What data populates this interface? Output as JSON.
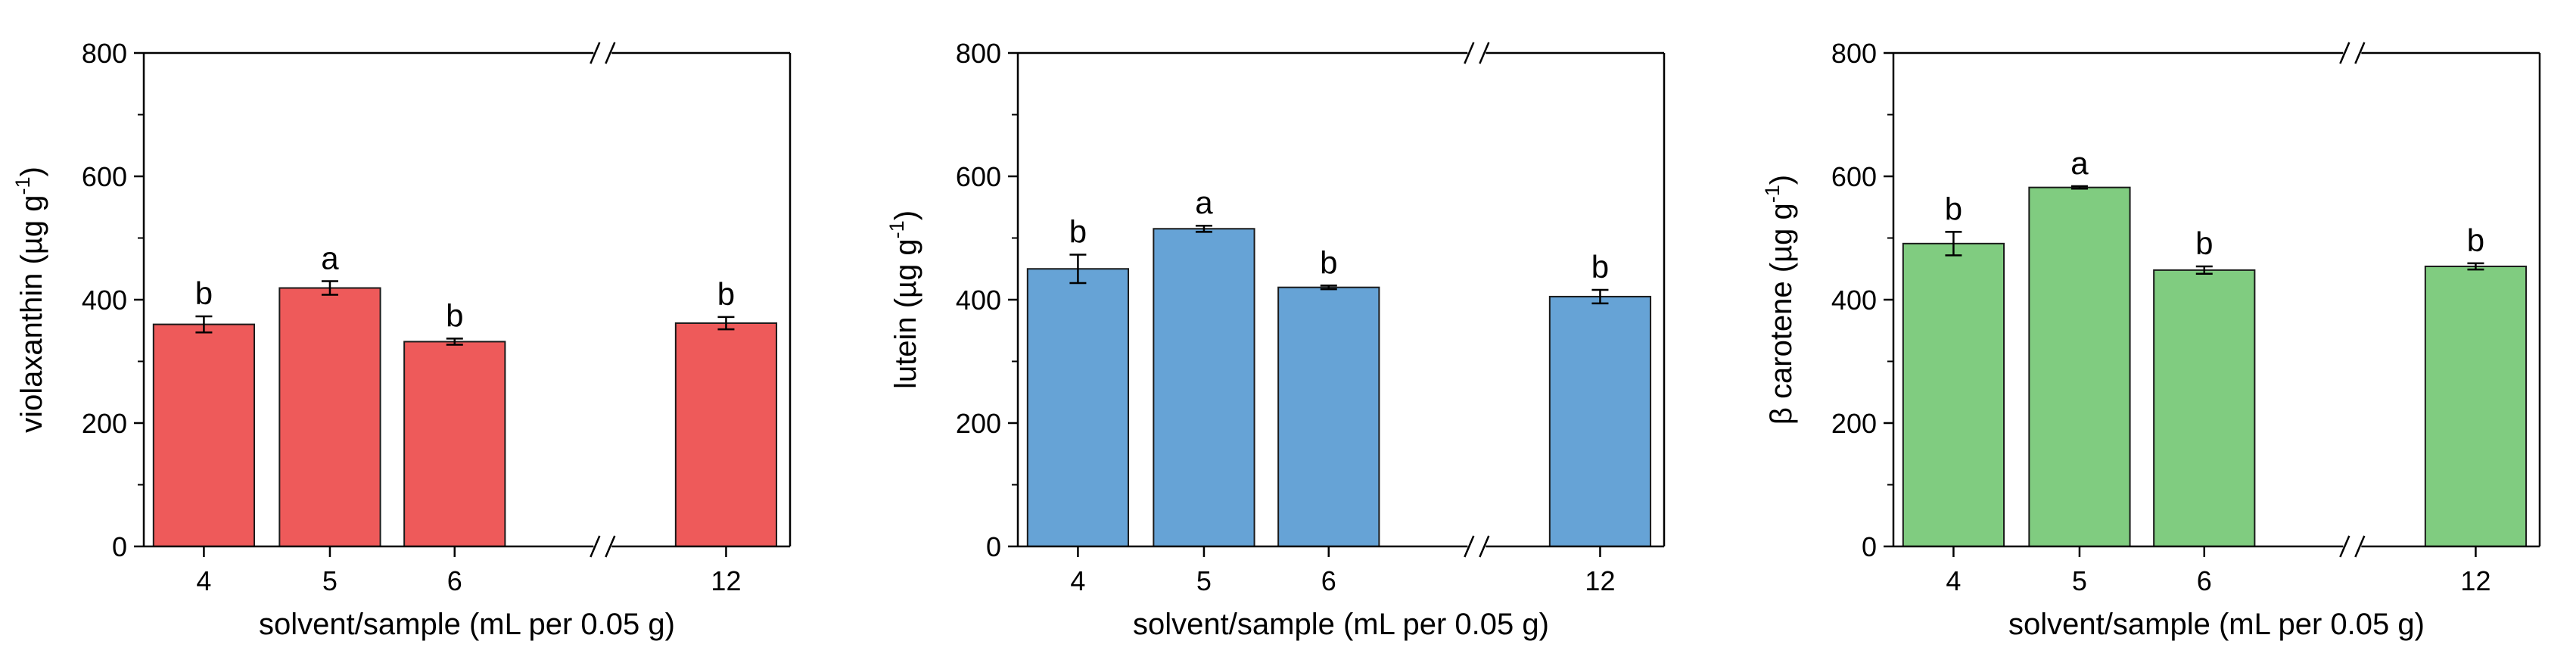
{
  "chart_data": [
    {
      "type": "bar",
      "categories": [
        "4",
        "5",
        "6",
        "12"
      ],
      "values": [
        360,
        419,
        332,
        362
      ],
      "errors": [
        13,
        11,
        5,
        10
      ],
      "significance": [
        "b",
        "a",
        "b",
        "b"
      ],
      "color": "#ee5a5a",
      "xlabel": "solvent/sample (mL per 0.05 g)",
      "ylabel": "violaxanthin (µg g-1)",
      "ylabel_main": "violaxanthin (µg g",
      "ylabel_sup": "-1",
      "ylabel_close": ")",
      "ylim": [
        0,
        800
      ],
      "yticks": [
        "0",
        "200",
        "400",
        "600",
        "800"
      ],
      "axis_break": "//",
      "grid": false
    },
    {
      "type": "bar",
      "categories": [
        "4",
        "5",
        "6",
        "12"
      ],
      "values": [
        450,
        515,
        420,
        405
      ],
      "errors": [
        23,
        5,
        3,
        11
      ],
      "significance": [
        "b",
        "a",
        "b",
        "b"
      ],
      "color": "#66a3d6",
      "xlabel": "solvent/sample (mL per 0.05 g)",
      "ylabel": "lutein (µg g-1)",
      "ylabel_main": "lutein (µg g",
      "ylabel_sup": "-1",
      "ylabel_close": ")",
      "ylim": [
        0,
        800
      ],
      "yticks": [
        "0",
        "200",
        "400",
        "600",
        "800"
      ],
      "axis_break": "//",
      "grid": false
    },
    {
      "type": "bar",
      "categories": [
        "4",
        "5",
        "6",
        "12"
      ],
      "values": [
        491,
        582,
        448,
        454
      ],
      "errors": [
        19,
        2,
        6,
        5
      ],
      "significance": [
        "b",
        "a",
        "b",
        "b"
      ],
      "color": "#80cc80",
      "xlabel": "solvent/sample (mL per 0.05 g)",
      "ylabel": "β carotene (µg g-1)",
      "ylabel_main": "β carotene (µg g",
      "ylabel_sup": "-1",
      "ylabel_close": ")",
      "ylim": [
        0,
        800
      ],
      "yticks": [
        "0",
        "200",
        "400",
        "600",
        "800"
      ],
      "axis_break": "//",
      "grid": false
    }
  ]
}
